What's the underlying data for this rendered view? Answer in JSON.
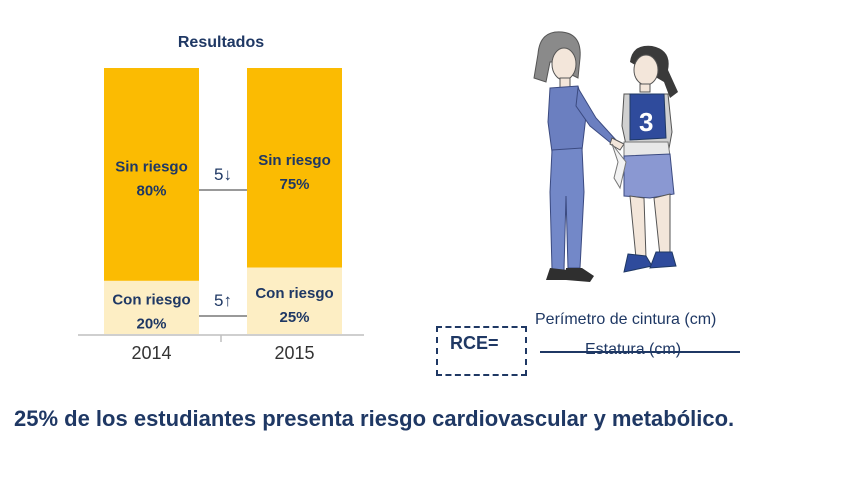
{
  "chart_data": {
    "type": "bar",
    "stacked": true,
    "title": "Resultados",
    "categories": [
      "2014",
      "2015"
    ],
    "series": [
      {
        "name": "Con riesgo",
        "values": [
          20,
          25
        ],
        "color": "#fdeec4"
      },
      {
        "name": "Sin riesgo",
        "values": [
          80,
          75
        ],
        "color": "#fbbb02"
      }
    ],
    "segment_labels": {
      "Con riesgo": [
        "Con riesgo",
        "Con riesgo"
      ],
      "Sin riesgo": [
        "Sin riesgo",
        "Sin riesgo"
      ],
      "values_text": {
        "Sin riesgo": [
          "80%",
          "75%"
        ],
        "Con riesgo": [
          "20%",
          "25%"
        ]
      }
    },
    "annotations": [
      {
        "text": "5↓",
        "series": "Sin riesgo"
      },
      {
        "text": "5↑",
        "series": "Con riesgo"
      }
    ],
    "ylim": [
      0,
      100
    ],
    "grid": false,
    "xlabel": "",
    "ylabel": ""
  },
  "formula": {
    "label": "RCE=",
    "numerator": "Perímetro de cintura (cm)",
    "denominator": "Estatura (cm)"
  },
  "illustration": {
    "icon": "waist-measurement-illustration",
    "bib_number": "3",
    "colors": {
      "shirt": "#6b7fc0",
      "pants": "#7388c8",
      "hair": "#8a8a8a",
      "bib": "#2f4b9c"
    }
  },
  "conclusion": "25% de los estudiantes presenta riesgo cardiovascular y metabólico.",
  "colors": {
    "text": "#1f3864",
    "accent": "#fbbb02",
    "light": "#fdeec4"
  }
}
